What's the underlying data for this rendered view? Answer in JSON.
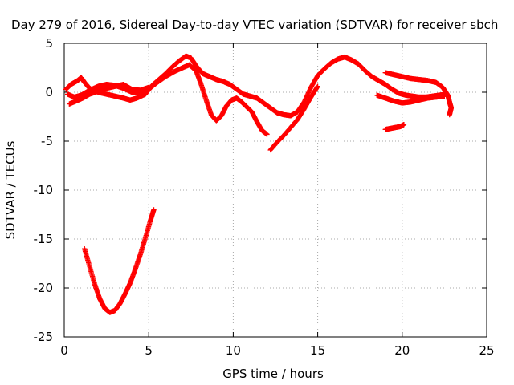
{
  "chart_data": {
    "type": "scatter",
    "title": "Day 279 of 2016, Sidereal Day-to-day VTEC variation (SDTVAR) for receiver sbch",
    "xlabel": "GPS time / hours",
    "ylabel": "SDTVAR / TECUs",
    "xlim": [
      0,
      25
    ],
    "ylim": [
      -25,
      5
    ],
    "xticks": [
      "0",
      "5",
      "10",
      "15",
      "20",
      "25"
    ],
    "yticks": [
      "5",
      "0",
      "-5",
      "-10",
      "-15",
      "-20",
      "-25"
    ],
    "xtick_values": [
      0,
      5,
      10,
      15,
      20,
      25
    ],
    "ytick_values": [
      5,
      0,
      -5,
      -10,
      -15,
      -20,
      -25
    ],
    "grid": true,
    "marker": "+",
    "color": "#ff0000",
    "series": [
      {
        "x": [
          0.1,
          0.4,
          0.8,
          1.0,
          1.2,
          1.5,
          2.0,
          2.5,
          3.0,
          3.5,
          3.9,
          4.3,
          4.8,
          5.2,
          5.6,
          6.0,
          6.4,
          6.8,
          7.2,
          7.5,
          7.8,
          8.2,
          8.6,
          9.0,
          9.4,
          9.8,
          10.2,
          10.6,
          11.0,
          11.4,
          11.8,
          12.2,
          12.6,
          13.0,
          13.4,
          13.8,
          14.2,
          14.6,
          15.0,
          15.4,
          15.8,
          16.2,
          16.6,
          17.0,
          17.4,
          17.8,
          18.2,
          18.6,
          19.0,
          19.4,
          19.8,
          20.2,
          20.6,
          21.0,
          21.4,
          21.8,
          22.2,
          22.6
        ],
        "y": [
          0.3,
          0.8,
          1.2,
          1.5,
          1.0,
          0.4,
          0.0,
          -0.2,
          -0.4,
          -0.6,
          -0.8,
          -0.6,
          -0.2,
          0.7,
          1.3,
          1.9,
          2.6,
          3.2,
          3.7,
          3.5,
          2.7,
          1.9,
          1.6,
          1.3,
          1.1,
          0.8,
          0.3,
          -0.2,
          -0.4,
          -0.6,
          -1.1,
          -1.6,
          -2.1,
          -2.3,
          -2.4,
          -2.0,
          -1.0,
          0.5,
          1.7,
          2.4,
          3.0,
          3.4,
          3.6,
          3.3,
          2.9,
          2.2,
          1.6,
          1.2,
          0.8,
          0.3,
          -0.1,
          -0.3,
          -0.4,
          -0.5,
          -0.5,
          -0.4,
          -0.3,
          -0.2
        ]
      },
      {
        "x": [
          0.2,
          0.6,
          1.0,
          1.5,
          2.0,
          2.5,
          3.0,
          3.5,
          4.0,
          4.5,
          5.0,
          5.5,
          6.0,
          6.5,
          7.0,
          7.4,
          7.8,
          8.1,
          8.4,
          8.7,
          9.0,
          9.3,
          9.6,
          9.9,
          10.2,
          10.5,
          10.8,
          11.1,
          11.4,
          11.7,
          12.0
        ],
        "y": [
          -0.2,
          -0.5,
          -0.3,
          0.2,
          0.6,
          0.8,
          0.7,
          0.4,
          0.0,
          -0.1,
          0.3,
          1.0,
          1.6,
          2.1,
          2.5,
          2.8,
          2.2,
          0.8,
          -0.8,
          -2.3,
          -2.9,
          -2.4,
          -1.4,
          -0.8,
          -0.6,
          -1.0,
          -1.5,
          -2.0,
          -3.0,
          -3.9,
          -4.3
        ]
      },
      {
        "x": [
          0.3,
          0.7,
          1.1,
          1.5,
          2.0,
          2.5,
          3.0,
          3.5,
          4.0,
          4.5,
          5.0
        ],
        "y": [
          -1.2,
          -0.9,
          -0.6,
          -0.2,
          0.1,
          0.4,
          0.6,
          0.8,
          0.3,
          0.2,
          0.5
        ]
      },
      {
        "x": [
          12.2,
          12.6,
          13.0,
          13.4,
          13.8,
          14.2,
          14.6,
          15.0
        ],
        "y": [
          -5.9,
          -5.1,
          -4.4,
          -3.6,
          -2.8,
          -1.7,
          -0.5,
          0.6
        ]
      },
      {
        "x": [
          19.0,
          19.3,
          19.6,
          19.9,
          20.1
        ],
        "y": [
          -3.8,
          -3.7,
          -3.6,
          -3.5,
          -3.3
        ]
      },
      {
        "x": [
          19.0,
          19.5,
          20.0,
          20.5,
          21.0,
          21.5,
          22.0,
          22.4,
          22.7,
          22.8,
          22.9,
          22.8
        ],
        "y": [
          2.0,
          1.8,
          1.6,
          1.4,
          1.3,
          1.2,
          1.0,
          0.5,
          -0.3,
          -1.0,
          -1.6,
          -2.3
        ]
      },
      {
        "x": [
          18.5,
          19.0,
          19.5,
          20.0,
          20.5,
          21.0,
          21.5,
          22.0,
          22.5
        ],
        "y": [
          -0.3,
          -0.6,
          -0.9,
          -1.1,
          -1.0,
          -0.8,
          -0.6,
          -0.5,
          -0.4
        ]
      },
      {
        "x": [
          1.2,
          1.5,
          1.8,
          2.1,
          2.4,
          2.7,
          3.0,
          3.3,
          3.6,
          3.9,
          4.2,
          4.5,
          4.8,
          5.1,
          5.3
        ],
        "y": [
          -16.0,
          -17.8,
          -19.6,
          -21.1,
          -22.1,
          -22.5,
          -22.3,
          -21.6,
          -20.6,
          -19.5,
          -18.1,
          -16.6,
          -14.9,
          -13.1,
          -12.0
        ]
      }
    ]
  }
}
